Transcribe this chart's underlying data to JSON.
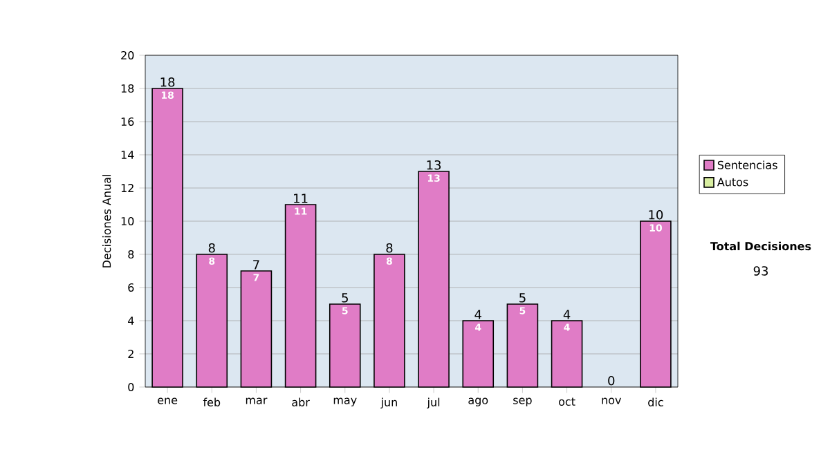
{
  "chart_data": {
    "type": "bar",
    "stacked": true,
    "ylabel": "Decisiones Anual",
    "categories": [
      "ene",
      "feb",
      "mar",
      "abr",
      "may",
      "jun",
      "jul",
      "ago",
      "sep",
      "oct",
      "nov",
      "dic"
    ],
    "series": [
      {
        "name": "Sentencias",
        "color": "#e07cc6",
        "values": [
          18,
          8,
          7,
          11,
          5,
          8,
          13,
          4,
          5,
          4,
          0,
          10
        ],
        "value_labels": [
          "18",
          "8",
          "7",
          "11",
          "5",
          "8",
          "13",
          "4",
          "5",
          "4",
          null,
          "10"
        ]
      },
      {
        "name": "Autos",
        "color": "#d8eea0",
        "values": [
          0,
          0,
          0,
          0,
          0,
          0,
          0,
          0,
          0,
          0,
          0,
          0
        ]
      }
    ],
    "totals": [
      "18",
      "8",
      "7",
      "11",
      "5",
      "8",
      "13",
      "4",
      "5",
      "4",
      "0",
      "10"
    ],
    "ylim": [
      0,
      20
    ],
    "yticks": [
      0,
      2,
      4,
      6,
      8,
      10,
      12,
      14,
      16,
      18,
      20
    ],
    "grid": "y",
    "legend": "right",
    "annotations": [
      "Total Decisiones",
      "93"
    ]
  }
}
